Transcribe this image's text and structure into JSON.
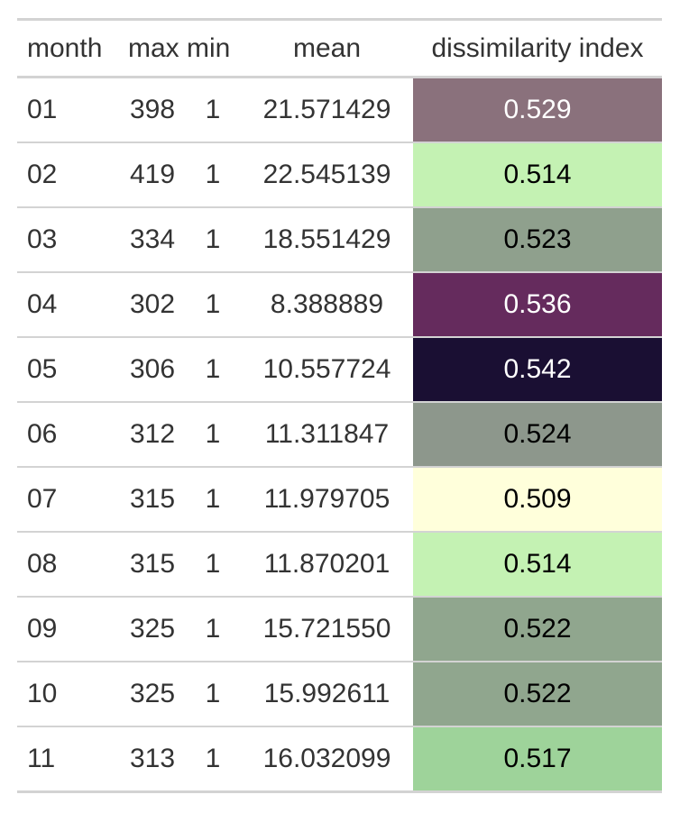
{
  "columns": {
    "month": "month",
    "max": "max",
    "min": "min",
    "mean": "mean",
    "dissimilarity_index": "dissimilarity index"
  },
  "rows": [
    {
      "month": "01",
      "max": "398",
      "min": "1",
      "mean": "21.571429",
      "dissimilarity_index": "0.529",
      "cell_color": "#8a717c",
      "text_color": "#ffffff"
    },
    {
      "month": "02",
      "max": "419",
      "min": "1",
      "mean": "22.545139",
      "dissimilarity_index": "0.514",
      "cell_color": "#c4f2b3",
      "text_color": "#000000"
    },
    {
      "month": "03",
      "max": "334",
      "min": "1",
      "mean": "18.551429",
      "dissimilarity_index": "0.523",
      "cell_color": "#8fa08d",
      "text_color": "#000000"
    },
    {
      "month": "04",
      "max": "302",
      "min": "1",
      "mean": "8.388889",
      "dissimilarity_index": "0.536",
      "cell_color": "#652b5d",
      "text_color": "#ffffff"
    },
    {
      "month": "05",
      "max": "306",
      "min": "1",
      "mean": "10.557724",
      "dissimilarity_index": "0.542",
      "cell_color": "#1a0f33",
      "text_color": "#ffffff"
    },
    {
      "month": "06",
      "max": "312",
      "min": "1",
      "mean": "11.311847",
      "dissimilarity_index": "0.524",
      "cell_color": "#8d978c",
      "text_color": "#000000"
    },
    {
      "month": "07",
      "max": "315",
      "min": "1",
      "mean": "11.979705",
      "dissimilarity_index": "0.509",
      "cell_color": "#ffffdb",
      "text_color": "#000000"
    },
    {
      "month": "08",
      "max": "315",
      "min": "1",
      "mean": "11.870201",
      "dissimilarity_index": "0.514",
      "cell_color": "#c4f2b3",
      "text_color": "#000000"
    },
    {
      "month": "09",
      "max": "325",
      "min": "1",
      "mean": "15.721550",
      "dissimilarity_index": "0.522",
      "cell_color": "#90a68e",
      "text_color": "#000000"
    },
    {
      "month": "10",
      "max": "325",
      "min": "1",
      "mean": "15.992611",
      "dissimilarity_index": "0.522",
      "cell_color": "#90a68e",
      "text_color": "#000000"
    },
    {
      "month": "11",
      "max": "313",
      "min": "1",
      "mean": "16.032099",
      "dissimilarity_index": "0.517",
      "cell_color": "#9ed39a",
      "text_color": "#000000"
    }
  ],
  "colors": {
    "text": "#333333",
    "rule": "#d3d3d3",
    "background": "#ffffff"
  }
}
